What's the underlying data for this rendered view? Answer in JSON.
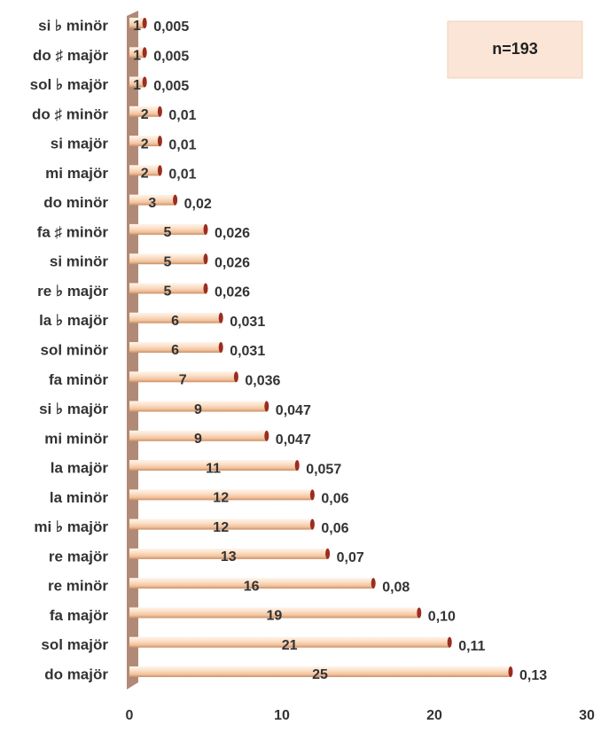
{
  "chart_data": {
    "type": "bar",
    "orientation": "horizontal",
    "annotation": "n=193",
    "categories": [
      "si ♭ minör",
      "do ♯ majör",
      "sol ♭ majör",
      "do ♯ minör",
      "si majör",
      "mi majör",
      "do minör",
      "fa ♯ minör",
      "si minör",
      "re ♭ majör",
      "la ♭ majör",
      "sol minör",
      "fa minör",
      "si ♭ majör",
      "mi minör",
      "la majör",
      "la minör",
      "mi ♭ majör",
      "re majör",
      "re minör",
      "fa majör",
      "sol majör",
      "do majör"
    ],
    "values": [
      1,
      1,
      1,
      2,
      2,
      2,
      3,
      5,
      5,
      5,
      6,
      6,
      7,
      9,
      9,
      11,
      12,
      12,
      13,
      16,
      19,
      21,
      25
    ],
    "share_labels": [
      "0,005",
      "0,005",
      "0,005",
      "0,01",
      "0,01",
      "0,01",
      "0,02",
      "0,026",
      "0,026",
      "0,026",
      "0,031",
      "0,031",
      "0,036",
      "0,047",
      "0,047",
      "0,057",
      "0,06",
      "0,06",
      "0,07",
      "0,08",
      "0,10",
      "0,11",
      "0,13"
    ],
    "color": "#f2c29c",
    "cap_color": "#9b2d1f",
    "xlim": [
      0,
      30
    ],
    "xticks": [
      0,
      10,
      20,
      30
    ],
    "grid": false
  }
}
